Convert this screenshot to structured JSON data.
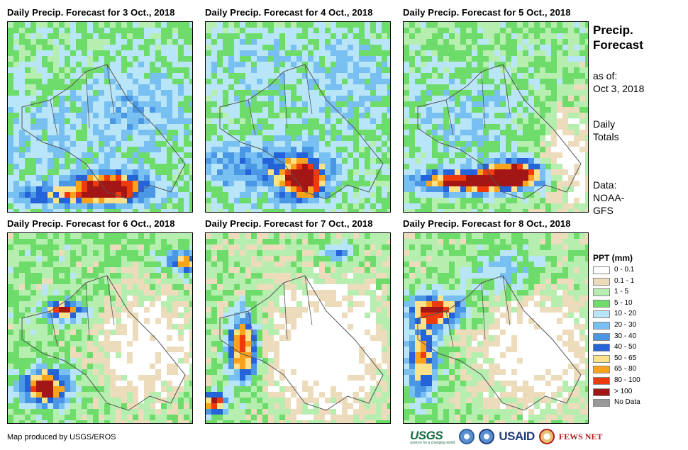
{
  "panels": [
    {
      "title": "Daily Precip. Forecast for 3 Oct., 2018",
      "day": 3
    },
    {
      "title": "Daily Precip. Forecast for 4 Oct., 2018",
      "day": 4
    },
    {
      "title": "Daily Precip. Forecast for 5 Oct., 2018",
      "day": 5
    },
    {
      "title": "Daily Precip. Forecast for 6 Oct., 2018",
      "day": 6
    },
    {
      "title": "Daily Precip. Forecast for 7 Oct., 2018",
      "day": 7
    },
    {
      "title": "Daily Precip. Forecast for 8 Oct., 2018",
      "day": 8
    }
  ],
  "sidebar": {
    "heading_line1": "Precip.",
    "heading_line2": "Forecast",
    "asof_label": "as of:",
    "asof_date": "Oct 3, 2018",
    "totals_line1": "Daily",
    "totals_line2": "Totals",
    "data_label": "Data:",
    "data_line1": "NOAA-",
    "data_line2": "GFS"
  },
  "legend": {
    "title": "PPT (mm)",
    "items": [
      {
        "label": "0 - 0.1",
        "color": "#ffffff"
      },
      {
        "label": "0.1 - 1",
        "color": "#ecdcbc"
      },
      {
        "label": "1 - 5",
        "color": "#b6eeb0"
      },
      {
        "label": "5 - 10",
        "color": "#6edc6a"
      },
      {
        "label": "10 - 20",
        "color": "#b8e6f8"
      },
      {
        "label": "20 - 30",
        "color": "#78bff2"
      },
      {
        "label": "30 - 40",
        "color": "#4a97e6"
      },
      {
        "label": "40 - 50",
        "color": "#2463d8"
      },
      {
        "label": "50 - 65",
        "color": "#fde28a"
      },
      {
        "label": "65 - 80",
        "color": "#f9a21c"
      },
      {
        "label": "80 - 100",
        "color": "#ef3a0e"
      },
      {
        "label": "> 100",
        "color": "#a31616"
      },
      {
        "label": "No Data",
        "color": "#999999"
      }
    ]
  },
  "credit": "Map produced by USGS/EROS",
  "logos": {
    "usgs": "USGS",
    "usgs_tagline": "science for a changing world",
    "usaid": "USAID",
    "fews": "FEWS NET"
  }
}
